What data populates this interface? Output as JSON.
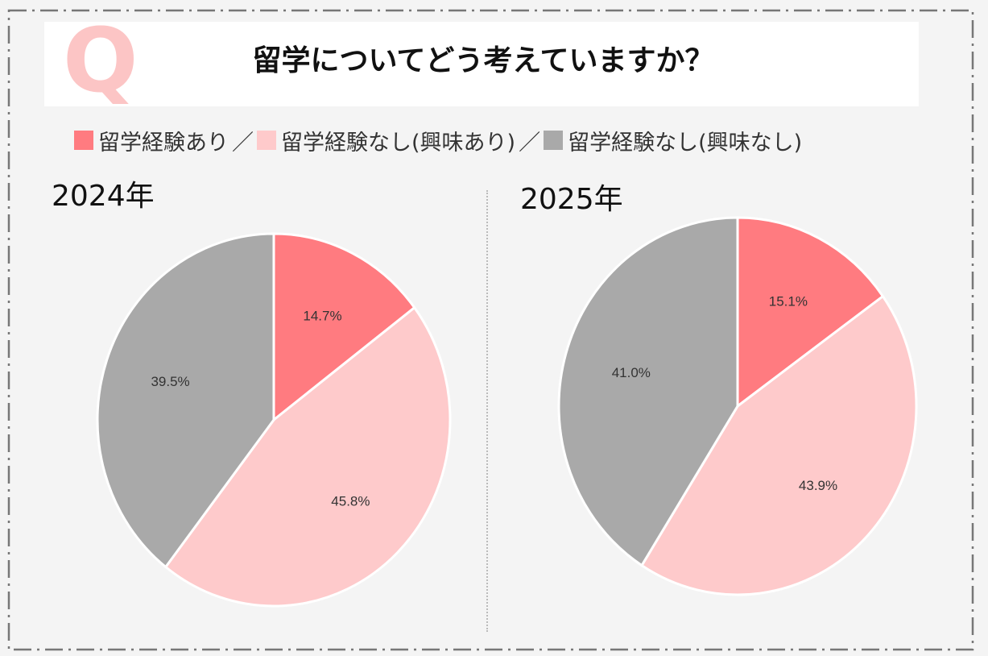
{
  "header": {
    "q_mark": "Q",
    "question": "留学についてどう考えていますか？"
  },
  "legend": {
    "items": [
      {
        "label": "留学経験あり",
        "color": "#ff7b80"
      },
      {
        "label": "留学経験なし(興味あり)",
        "color": "#fecacb"
      },
      {
        "label": "留学経験なし(興味なし)",
        "color": "#a9a9a9"
      }
    ],
    "separator": "／"
  },
  "chart_data": [
    {
      "type": "pie",
      "title": "2024年",
      "labels": [
        "留学経験あり",
        "留学経験なし(興味あり)",
        "留学経験なし(興味なし)"
      ],
      "values": [
        14.7,
        45.8,
        39.5
      ],
      "value_labels": [
        "14.7%",
        "45.8%",
        "39.5%"
      ],
      "colors": [
        "#ff7b80",
        "#fecacb",
        "#a9a9a9"
      ],
      "start": "12 o'clock",
      "direction": "clockwise"
    },
    {
      "type": "pie",
      "title": "2025年",
      "labels": [
        "留学経験あり",
        "留学経験なし(興味あり)",
        "留学経験なし(興味なし)"
      ],
      "values": [
        15.1,
        43.9,
        41.0
      ],
      "value_labels": [
        "15.1%",
        "43.9%",
        "41.0%"
      ],
      "colors": [
        "#ff7b80",
        "#fecacb",
        "#a9a9a9"
      ],
      "start": "12 o'clock",
      "direction": "clockwise"
    }
  ]
}
